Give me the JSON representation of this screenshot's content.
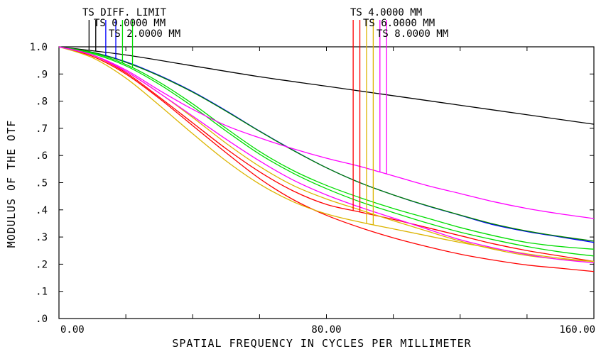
{
  "chart_data": {
    "type": "line",
    "title": "",
    "xlabel": "SPATIAL FREQUENCY IN CYCLES PER MILLIMETER",
    "ylabel": "MODULUS OF THE OTF",
    "xlim": [
      0,
      160
    ],
    "ylim": [
      0,
      1.0
    ],
    "x_tick_values": [
      0,
      80,
      160
    ],
    "x_tick_labels": [
      "0.00",
      "80.00",
      "160.00"
    ],
    "x_minor_step": 20,
    "y_tick_values": [
      1.0,
      0.9,
      0.8,
      0.7,
      0.6,
      0.5,
      0.4,
      0.3,
      0.2,
      0.1,
      0.0
    ],
    "y_tick_labels": [
      "1.0",
      ".9",
      ".8",
      ".7",
      ".6",
      ".5",
      ".4",
      ".3",
      ".2",
      ".1",
      ".0"
    ],
    "grid": false,
    "legend_left": [
      "TS DIFF. LIMIT",
      "TS 0.0000 MM",
      "TS 2.0000 MM"
    ],
    "legend_right": [
      "TS 4.0000 MM",
      "TS 6.0000 MM",
      "TS 8.0000 MM"
    ],
    "series": [
      {
        "name": "TS DIFF. LIMIT",
        "color": "#000000",
        "marker_x": [
          9,
          11
        ],
        "x": [
          0,
          20,
          40,
          60,
          80,
          100,
          120,
          140,
          160
        ],
        "y": [
          1.0,
          0.97,
          0.93,
          0.89,
          0.855,
          0.82,
          0.785,
          0.75,
          0.715
        ]
      },
      {
        "name": "TS 0.0000 MM",
        "color": "#0000ff",
        "marker_x": [
          14,
          17
        ],
        "x": [
          0,
          10,
          20,
          30,
          40,
          50,
          60,
          70,
          80,
          90,
          100,
          110,
          120,
          130,
          140,
          150,
          160
        ],
        "y": [
          1.0,
          0.98,
          0.945,
          0.895,
          0.835,
          0.765,
          0.69,
          0.62,
          0.555,
          0.5,
          0.455,
          0.415,
          0.38,
          0.345,
          0.32,
          0.3,
          0.28
        ]
      },
      {
        "name": "TS 0.0000 MM",
        "color": "#008000",
        "marker_x": [],
        "x": [
          0,
          10,
          20,
          30,
          40,
          50,
          60,
          70,
          80,
          90,
          100,
          110,
          120,
          130,
          140,
          150,
          160
        ],
        "y": [
          1.0,
          0.98,
          0.943,
          0.893,
          0.833,
          0.763,
          0.689,
          0.619,
          0.555,
          0.5,
          0.455,
          0.416,
          0.381,
          0.348,
          0.322,
          0.302,
          0.285
        ]
      },
      {
        "name": "TS 2.0000 MM",
        "color": "#00dd00",
        "marker_x": [
          19,
          22
        ],
        "x": [
          0,
          10,
          20,
          30,
          40,
          50,
          60,
          70,
          80,
          90,
          100,
          110,
          120,
          130,
          140,
          150,
          160
        ],
        "y": [
          1.0,
          0.978,
          0.935,
          0.87,
          0.79,
          0.7,
          0.615,
          0.545,
          0.49,
          0.445,
          0.405,
          0.37,
          0.335,
          0.305,
          0.28,
          0.265,
          0.255
        ]
      },
      {
        "name": "TS 2.0000 MM",
        "color": "#00dd00",
        "marker_x": [],
        "x": [
          0,
          10,
          20,
          30,
          40,
          50,
          60,
          70,
          80,
          90,
          100,
          110,
          120,
          130,
          140,
          150,
          160
        ],
        "y": [
          1.0,
          0.975,
          0.93,
          0.862,
          0.78,
          0.69,
          0.605,
          0.535,
          0.478,
          0.43,
          0.39,
          0.352,
          0.318,
          0.29,
          0.265,
          0.245,
          0.23
        ]
      },
      {
        "name": "TS 4.0000 MM",
        "color": "#ff0000",
        "marker_x": [
          88,
          90
        ],
        "x": [
          0,
          10,
          20,
          30,
          40,
          50,
          60,
          70,
          80,
          90,
          100,
          110,
          120,
          130,
          140,
          150,
          160
        ],
        "y": [
          1.0,
          0.97,
          0.905,
          0.815,
          0.72,
          0.625,
          0.54,
          0.47,
          0.42,
          0.392,
          0.365,
          0.335,
          0.305,
          0.275,
          0.25,
          0.23,
          0.21
        ]
      },
      {
        "name": "TS 4.0000 MM",
        "color": "#ff0000",
        "marker_x": [],
        "x": [
          0,
          10,
          20,
          30,
          40,
          50,
          60,
          70,
          80,
          90,
          100,
          110,
          120,
          130,
          140,
          150,
          160
        ],
        "y": [
          1.0,
          0.965,
          0.9,
          0.81,
          0.71,
          0.61,
          0.515,
          0.438,
          0.38,
          0.335,
          0.297,
          0.265,
          0.237,
          0.215,
          0.197,
          0.185,
          0.173
        ]
      },
      {
        "name": "TS 6.0000 MM",
        "color": "#dcb400",
        "marker_x": [
          92,
          94
        ],
        "x": [
          0,
          10,
          20,
          30,
          40,
          50,
          60,
          70,
          80,
          90,
          100,
          110,
          120,
          130,
          140,
          150,
          160
        ],
        "y": [
          1.0,
          0.96,
          0.885,
          0.785,
          0.68,
          0.58,
          0.495,
          0.43,
          0.385,
          0.355,
          0.33,
          0.305,
          0.28,
          0.258,
          0.238,
          0.222,
          0.21
        ]
      },
      {
        "name": "TS 6.0000 MM",
        "color": "#dcb400",
        "marker_x": [],
        "x": [
          0,
          10,
          20,
          30,
          40,
          50,
          60,
          70,
          80,
          90,
          100,
          110,
          120,
          130,
          140,
          150,
          160
        ],
        "y": [
          1.0,
          0.97,
          0.91,
          0.83,
          0.74,
          0.645,
          0.56,
          0.49,
          0.44,
          0.4,
          0.36,
          0.322,
          0.285,
          0.255,
          0.232,
          0.218,
          0.21
        ]
      },
      {
        "name": "TS 8.0000 MM",
        "color": "#ff00ff",
        "marker_x": [
          96,
          98
        ],
        "x": [
          0,
          10,
          20,
          30,
          40,
          50,
          60,
          70,
          80,
          90,
          100,
          110,
          120,
          130,
          140,
          150,
          160
        ],
        "y": [
          1.0,
          0.97,
          0.915,
          0.84,
          0.77,
          0.71,
          0.665,
          0.625,
          0.59,
          0.56,
          0.525,
          0.49,
          0.46,
          0.43,
          0.405,
          0.385,
          0.368
        ]
      },
      {
        "name": "TS 8.0000 MM",
        "color": "#ff00ff",
        "marker_x": [],
        "x": [
          0,
          10,
          20,
          30,
          40,
          50,
          60,
          70,
          80,
          90,
          100,
          110,
          120,
          130,
          140,
          150,
          160
        ],
        "y": [
          1.0,
          0.97,
          0.91,
          0.83,
          0.745,
          0.66,
          0.58,
          0.51,
          0.455,
          0.41,
          0.37,
          0.33,
          0.29,
          0.26,
          0.235,
          0.217,
          0.205
        ]
      }
    ]
  }
}
